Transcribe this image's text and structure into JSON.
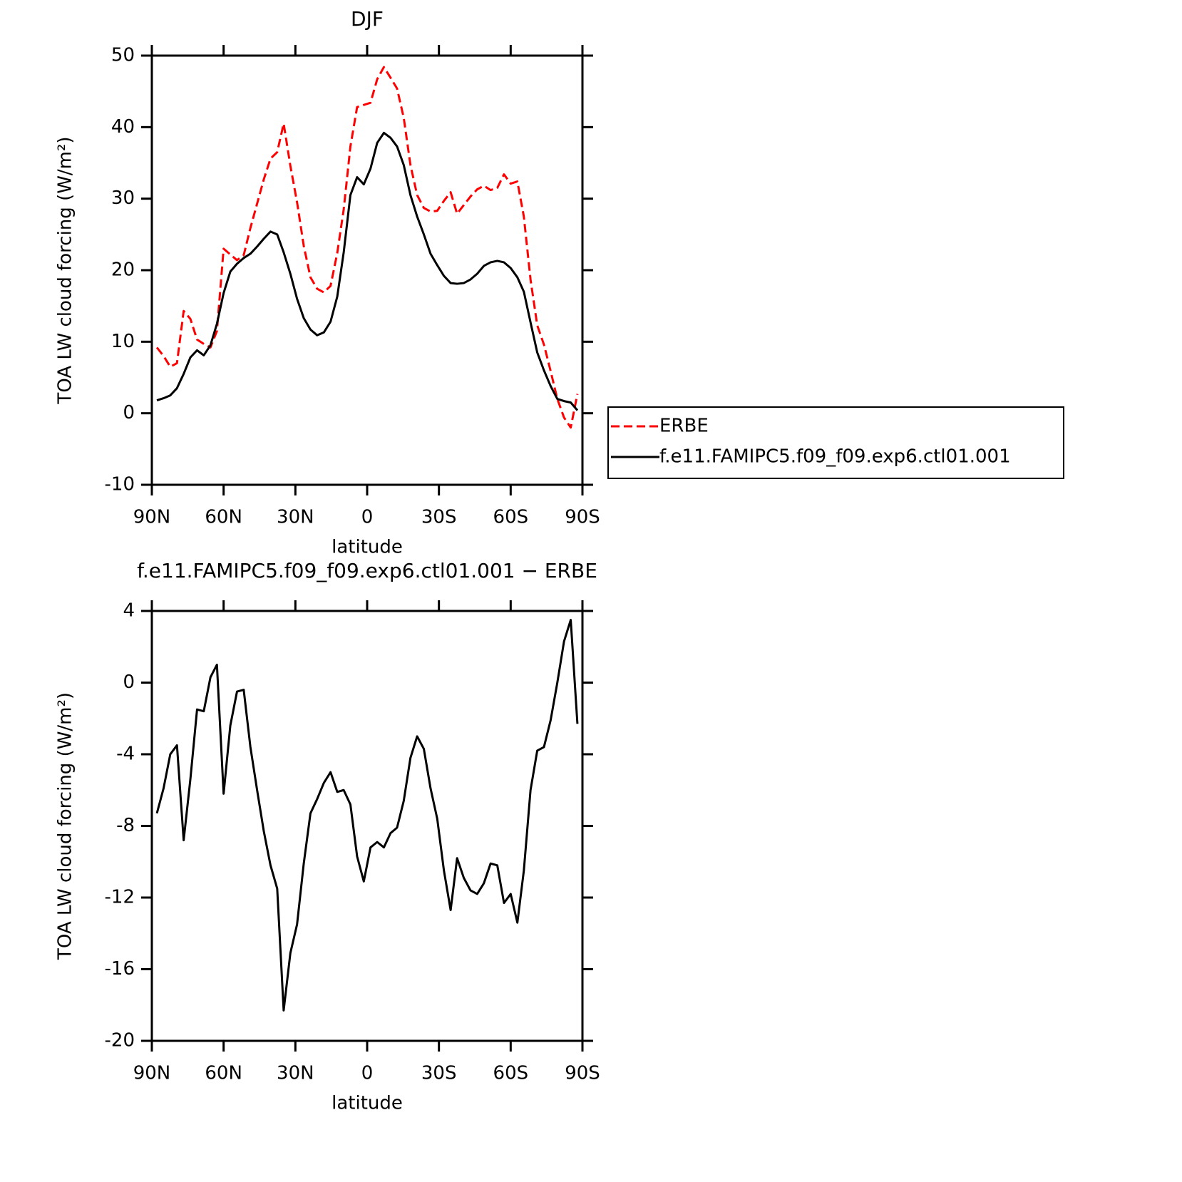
{
  "chart_data": [
    {
      "type": "line",
      "title": "DJF",
      "xlabel": "latitude",
      "ylabel": "TOA LW cloud forcing (W/m²)",
      "x": [
        87.9,
        85.1,
        82.3,
        79.5,
        76.7,
        73.9,
        71.1,
        68.3,
        65.5,
        62.8,
        60.0,
        57.2,
        54.4,
        51.6,
        48.8,
        46.0,
        43.2,
        40.4,
        37.6,
        34.9,
        32.1,
        29.3,
        26.5,
        23.7,
        20.9,
        18.1,
        15.3,
        12.5,
        9.8,
        7.0,
        4.2,
        1.4,
        -1.4,
        -4.2,
        -7.0,
        -9.8,
        -12.5,
        -15.3,
        -18.1,
        -20.9,
        -23.7,
        -26.5,
        -29.3,
        -32.1,
        -34.9,
        -37.6,
        -40.4,
        -43.2,
        -46.0,
        -48.8,
        -51.6,
        -54.4,
        -57.2,
        -60.0,
        -62.8,
        -65.5,
        -68.3,
        -71.1,
        -73.9,
        -76.7,
        -79.5,
        -82.3,
        -85.1,
        -87.9
      ],
      "series": [
        {
          "name": "ERBE",
          "color": "#ff0000",
          "dash": true,
          "values": [
            9.2,
            8.0,
            6.5,
            7.0,
            14.3,
            13.2,
            10.3,
            9.7,
            9.2,
            11.5,
            23.0,
            22.2,
            21.4,
            22.1,
            25.9,
            29.3,
            32.7,
            35.6,
            36.5,
            40.5,
            34.6,
            29.5,
            23.4,
            19.0,
            17.4,
            16.9,
            17.8,
            22.4,
            28.5,
            37.3,
            42.8,
            43.1,
            43.4,
            46.7,
            48.4,
            46.9,
            45.4,
            41.3,
            34.7,
            30.5,
            28.7,
            28.2,
            28.3,
            29.7,
            30.9,
            27.9,
            29.1,
            30.3,
            31.3,
            31.8,
            31.2,
            31.5,
            33.4,
            32.1,
            32.4,
            27.5,
            18.7,
            12.3,
            9.6,
            5.9,
            2.0,
            -0.6,
            -2.0,
            2.7
          ]
        },
        {
          "name": "f.e11.FAMIPC5.f09_f09.exp6.ctl01.001",
          "color": "#000000",
          "dash": false,
          "values": [
            1.8,
            2.1,
            2.5,
            3.5,
            5.5,
            7.8,
            8.8,
            8.1,
            9.5,
            12.5,
            16.8,
            19.8,
            20.9,
            21.7,
            22.3,
            23.3,
            24.4,
            25.4,
            25.0,
            22.5,
            19.5,
            16.0,
            13.3,
            11.7,
            10.9,
            11.3,
            12.8,
            16.3,
            22.5,
            30.5,
            33.0,
            32.0,
            34.2,
            37.8,
            39.2,
            38.5,
            37.3,
            34.7,
            30.5,
            27.5,
            25.0,
            22.3,
            20.7,
            19.2,
            18.2,
            18.1,
            18.2,
            18.7,
            19.5,
            20.6,
            21.1,
            21.3,
            21.1,
            20.3,
            19.0,
            17.0,
            12.7,
            8.5,
            6.0,
            3.8,
            2.0,
            1.7,
            1.5,
            0.4
          ]
        }
      ],
      "xlim": [
        90,
        -90
      ],
      "xticks": [
        {
          "value": 90,
          "label": "90N"
        },
        {
          "value": 60,
          "label": "60N"
        },
        {
          "value": 30,
          "label": "30N"
        },
        0,
        {
          "value": -30,
          "label": "30S"
        },
        {
          "value": -60,
          "label": "60S"
        },
        {
          "value": -90,
          "label": "90S"
        }
      ],
      "ylim": [
        -10,
        50
      ],
      "yticks": [
        -10,
        0,
        10,
        20,
        30,
        40,
        50
      ],
      "legend": "outside-right"
    },
    {
      "type": "line",
      "title": "f.e11.FAMIPC5.f09_f09.exp6.ctl01.001 − ERBE",
      "xlabel": "latitude",
      "ylabel": "TOA LW cloud forcing (W/m²)",
      "x": [
        87.9,
        85.1,
        82.3,
        79.5,
        76.7,
        73.9,
        71.1,
        68.3,
        65.5,
        62.8,
        60.0,
        57.2,
        54.4,
        51.6,
        48.8,
        46.0,
        43.2,
        40.4,
        37.6,
        34.9,
        32.1,
        29.3,
        26.5,
        23.7,
        20.9,
        18.1,
        15.3,
        12.5,
        9.8,
        7.0,
        4.2,
        1.4,
        -1.4,
        -4.2,
        -7.0,
        -9.8,
        -12.5,
        -15.3,
        -18.1,
        -20.9,
        -23.7,
        -26.5,
        -29.3,
        -32.1,
        -34.9,
        -37.6,
        -40.4,
        -43.2,
        -46.0,
        -48.8,
        -51.6,
        -54.4,
        -57.2,
        -60.0,
        -62.8,
        -65.5,
        -68.3,
        -71.1,
        -73.9,
        -76.7,
        -79.5,
        -82.3,
        -85.1,
        -87.9
      ],
      "series": [
        {
          "color": "#000000",
          "dash": false,
          "values": [
            -7.3,
            -5.9,
            -4.0,
            -3.5,
            -8.8,
            -5.4,
            -1.5,
            -1.6,
            0.3,
            1.0,
            -6.2,
            -2.4,
            -0.5,
            -0.4,
            -3.6,
            -6.0,
            -8.3,
            -10.2,
            -11.5,
            -18.3,
            -15.1,
            -13.5,
            -10.1,
            -7.3,
            -6.5,
            -5.6,
            -5.0,
            -6.1,
            -6.0,
            -6.8,
            -9.7,
            -11.1,
            -9.2,
            -8.9,
            -9.2,
            -8.4,
            -8.1,
            -6.6,
            -4.2,
            -3.0,
            -3.7,
            -5.9,
            -7.6,
            -10.5,
            -12.7,
            -9.8,
            -10.9,
            -11.6,
            -11.8,
            -11.2,
            -10.1,
            -10.2,
            -12.3,
            -11.8,
            -13.4,
            -10.5,
            -6.0,
            -3.8,
            -3.6,
            -2.1,
            0.0,
            2.3,
            3.5,
            -2.3
          ]
        }
      ],
      "xlim": [
        90,
        -90
      ],
      "xticks": [
        {
          "value": 90,
          "label": "90N"
        },
        {
          "value": 60,
          "label": "60N"
        },
        {
          "value": 30,
          "label": "30N"
        },
        0,
        {
          "value": -30,
          "label": "30S"
        },
        {
          "value": -60,
          "label": "60S"
        },
        {
          "value": -90,
          "label": "90S"
        }
      ],
      "ylim": [
        -20,
        4
      ],
      "yticks": [
        -20,
        -16,
        -12,
        -8,
        -4,
        0,
        4
      ]
    }
  ]
}
